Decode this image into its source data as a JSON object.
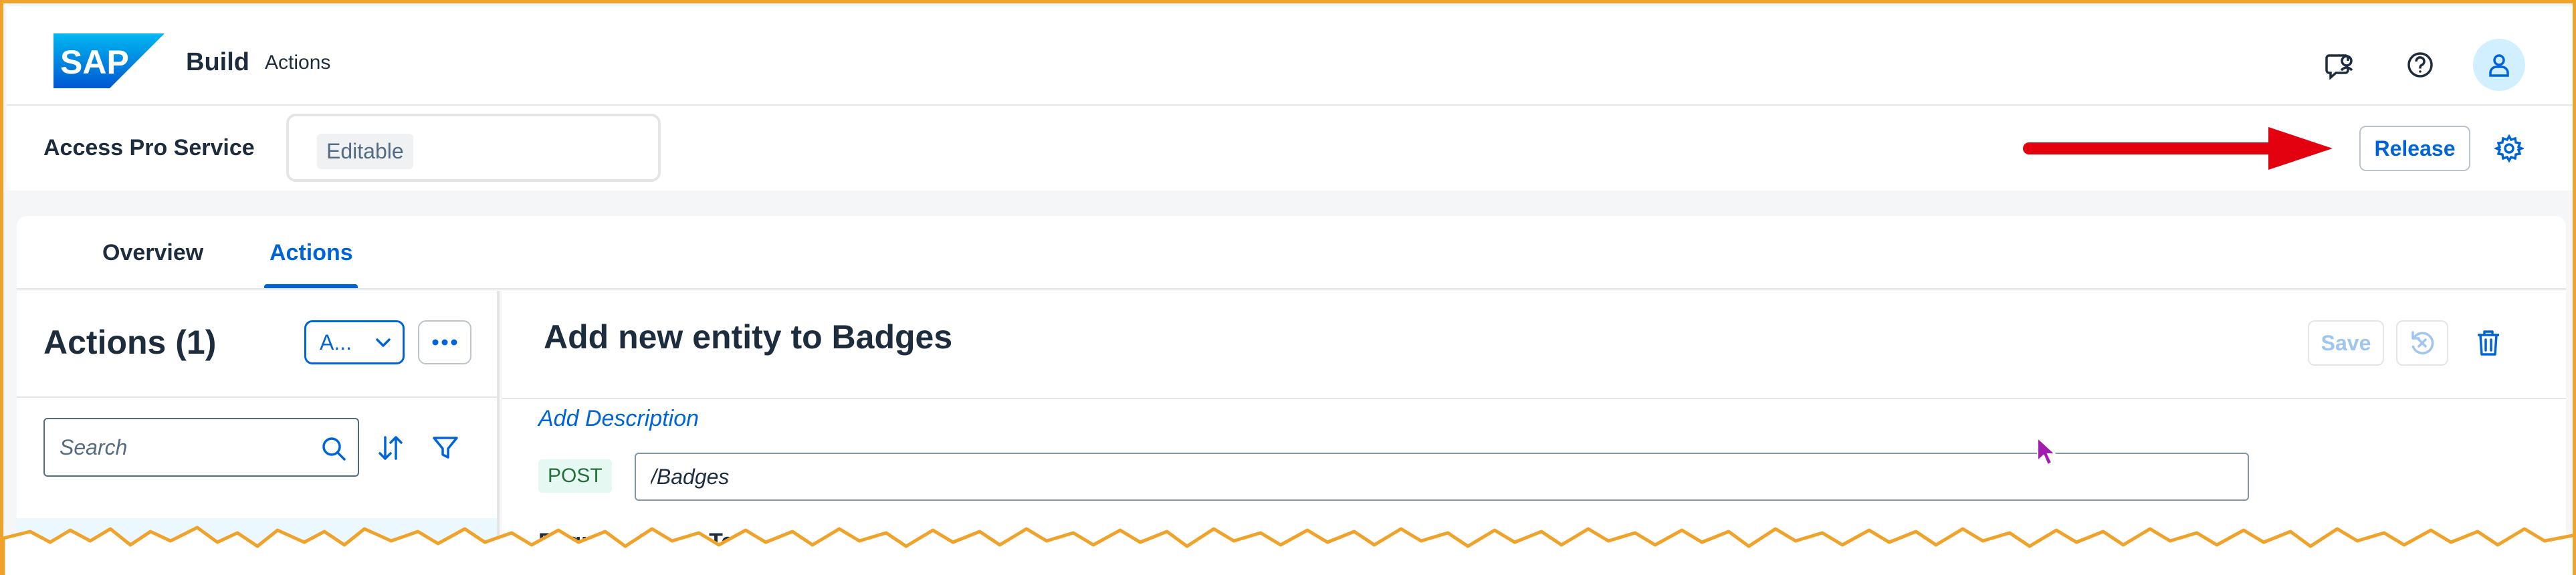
{
  "shellbar": {
    "logo_text": "SAP",
    "app_name": "Build",
    "app_subtitle": "Actions",
    "icons": [
      "feedback-icon",
      "help-icon",
      "user-icon"
    ]
  },
  "header": {
    "service_name": "Access Pro Service",
    "status": "Editable",
    "release_label": "Release",
    "settings_icon": "gear-icon",
    "annotation": "red-arrow-pointing-at-release"
  },
  "tabs": {
    "items": [
      {
        "label": "Overview",
        "selected": false
      },
      {
        "label": "Actions",
        "selected": true
      }
    ]
  },
  "left_pane": {
    "title": "Actions (1)",
    "mode_select_value": "A...",
    "search_placeholder": "Search",
    "sort_icon": "sort-icon",
    "filter_icon": "filter-icon"
  },
  "detail": {
    "title": "Add new entity to Badges",
    "save_label": "Save",
    "add_description_label": "Add Description",
    "method": "POST",
    "path": "/Badges",
    "subtabs_partial": [
      "Requ",
      "Qu",
      "Te"
    ]
  },
  "colors": {
    "accent": "#0064d9",
    "frame_border": "#f0a32a",
    "arrow": "#e3000f",
    "text": "#1d2d3e",
    "post_badge_bg": "#e5f8f2"
  }
}
